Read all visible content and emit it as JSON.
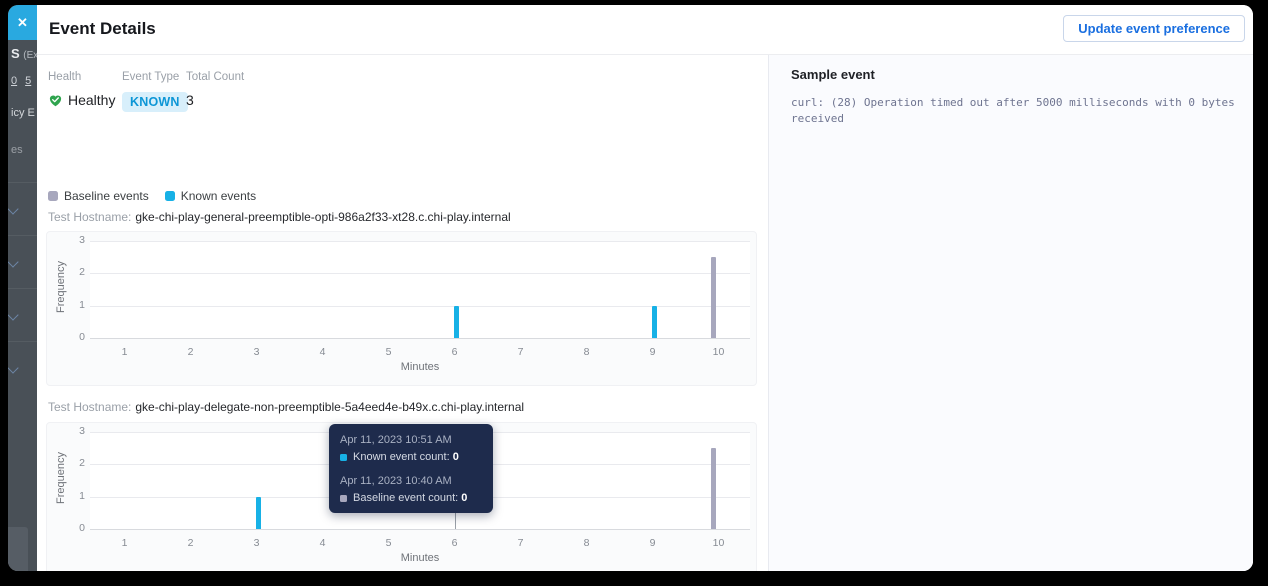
{
  "background_sidebar": {
    "close_icon": "✕",
    "fragments": {
      "heading": "S",
      "heading_suffix": "(Ex",
      "link_a": "0",
      "link_b": "5",
      "line_icy": "icy E",
      "line_es": "es"
    }
  },
  "header": {
    "title": "Event Details",
    "update_button_label": "Update event preference"
  },
  "summary": {
    "health_label": "Health",
    "health_value": "Healthy",
    "event_type_label": "Event Type",
    "event_type_value": "KNOWN",
    "total_count_label": "Total Count",
    "total_count_value": "3"
  },
  "legend": {
    "baseline_label": "Baseline events",
    "known_label": "Known events"
  },
  "colors": {
    "known": "#17b1e6",
    "baseline": "#a7a7bd",
    "healthy_green": "#2fa44e",
    "accent_blue": "#1a6fe0",
    "close_button_blue": "#29a9e0"
  },
  "chart_data": [
    {
      "type": "bar",
      "hostname_label": "Test Hostname:",
      "hostname": "gke-chi-play-general-preemptible-opti-986a2f33-xt28.c.chi-play.internal",
      "xlabel": "Minutes",
      "ylabel": "Frequency",
      "x_ticks": [
        1,
        2,
        3,
        4,
        5,
        6,
        7,
        8,
        9,
        10
      ],
      "y_ticks": [
        0,
        1,
        2,
        3
      ],
      "ylim": [
        0,
        3
      ],
      "grid": "horizontal",
      "series": [
        {
          "name": "Known events",
          "color_key": "known",
          "points": [
            {
              "x": 6,
              "y": 1
            },
            {
              "x": 9,
              "y": 1
            }
          ]
        },
        {
          "name": "Baseline events",
          "color_key": "baseline",
          "points": [
            {
              "x": 10,
              "y": 2.5
            }
          ]
        }
      ]
    },
    {
      "type": "bar",
      "hostname_label": "Test Hostname:",
      "hostname": "gke-chi-play-delegate-non-preemptible-5a4eed4e-b49x.c.chi-play.internal",
      "xlabel": "Minutes",
      "ylabel": "Frequency",
      "x_ticks": [
        1,
        2,
        3,
        4,
        5,
        6,
        7,
        8,
        9,
        10
      ],
      "y_ticks": [
        0,
        1,
        2,
        3
      ],
      "ylim": [
        0,
        3
      ],
      "grid": "horizontal",
      "series": [
        {
          "name": "Known events",
          "color_key": "known",
          "points": [
            {
              "x": 3,
              "y": 1
            }
          ]
        },
        {
          "name": "Baseline events",
          "color_key": "baseline",
          "points": [
            {
              "x": 10,
              "y": 2.5
            }
          ]
        }
      ],
      "crosshair_x": 6,
      "tooltip": {
        "groups": [
          {
            "time": "Apr 11, 2023 10:51 AM",
            "label": "Known event count:",
            "value": "0",
            "color_key": "known"
          },
          {
            "time": "Apr 11, 2023 10:40 AM",
            "label": "Baseline event count:",
            "value": "0",
            "color_key": "baseline"
          }
        ]
      }
    }
  ],
  "sample_event": {
    "title": "Sample event",
    "text": "curl: (28) Operation timed out after 5000 milliseconds with 0 bytes received"
  }
}
